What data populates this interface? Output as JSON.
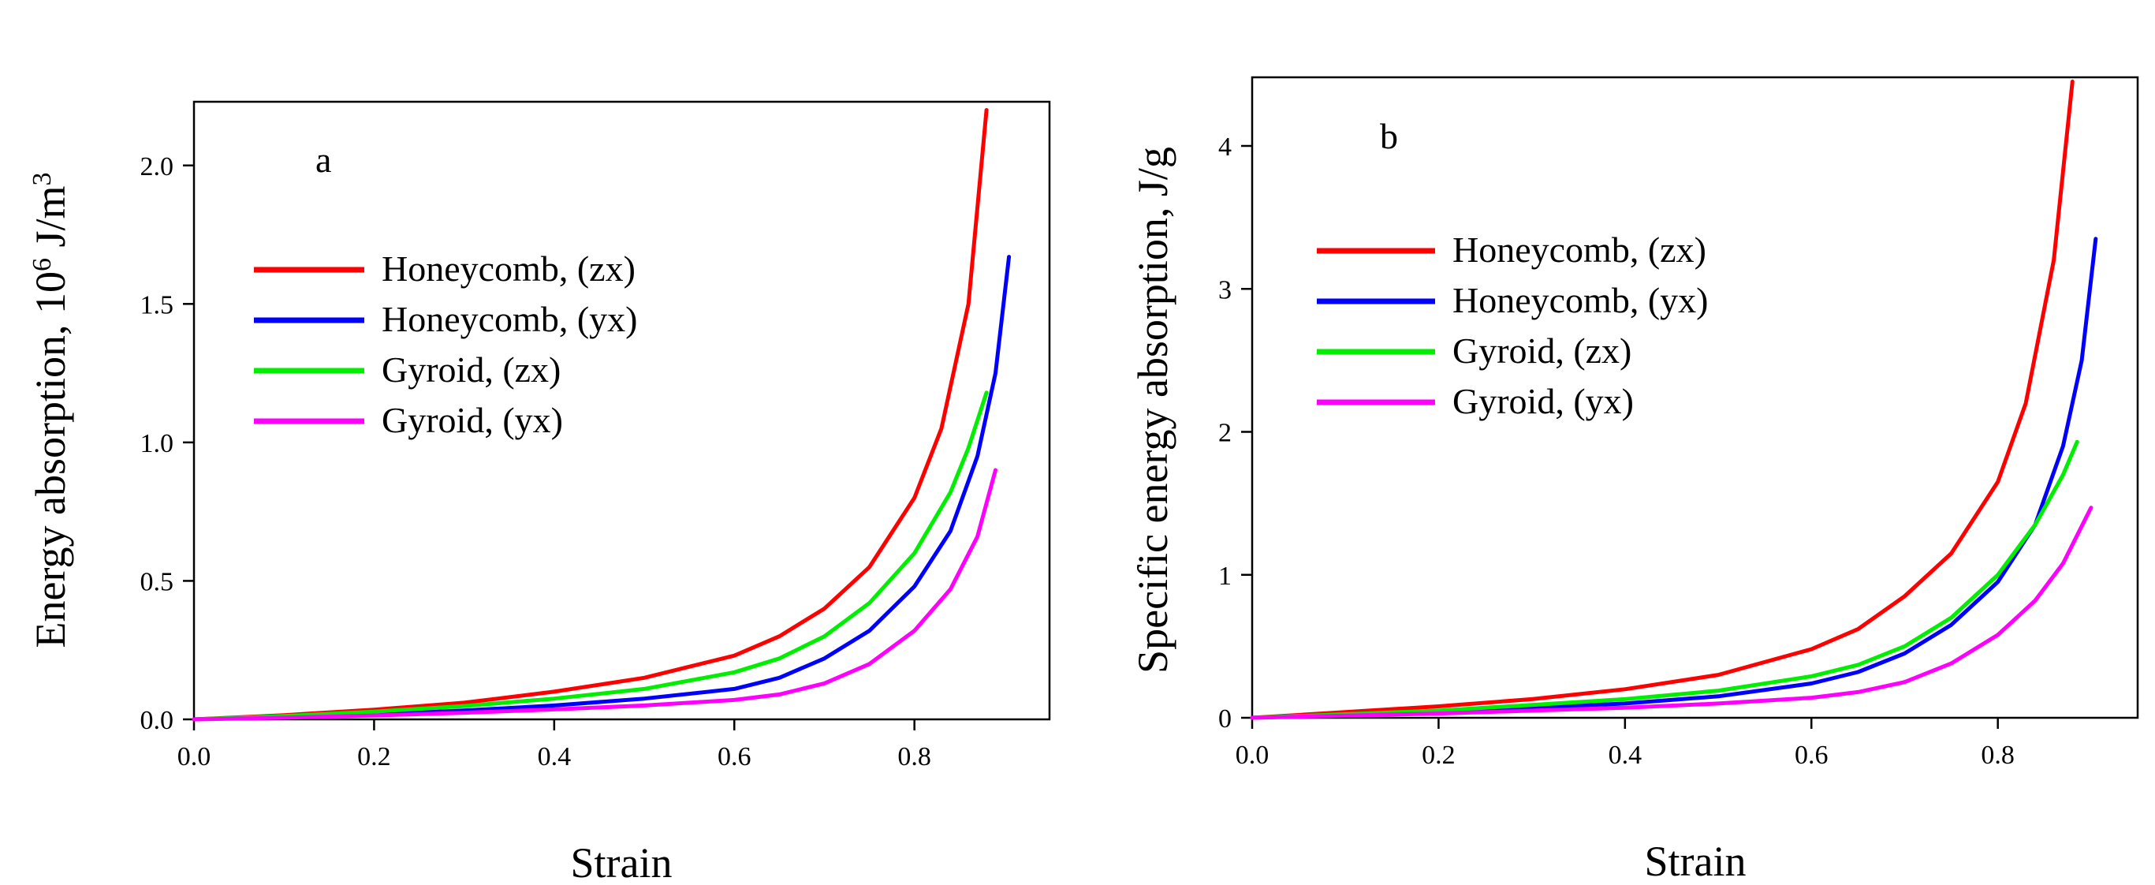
{
  "chart_data": [
    {
      "type": "line",
      "panel_label": "a",
      "xlabel": "Strain",
      "ylabel_main": "Energy absorption,  10",
      "ylabel_exp": "6",
      "ylabel_unit": " J/m",
      "ylabel_unit_exp": "3",
      "xlim": [
        0,
        0.95
      ],
      "ylim": [
        0,
        2.23
      ],
      "xticks": [
        0.0,
        0.2,
        0.4,
        0.6,
        0.8
      ],
      "xtick_labels": [
        "0.0",
        "0.2",
        "0.4",
        "0.6",
        "0.8"
      ],
      "yticks": [
        0.0,
        0.5,
        1.0,
        1.5,
        2.0
      ],
      "ytick_labels": [
        "0.0",
        "0.5",
        "1.0",
        "1.5",
        "2.0"
      ],
      "legend": [
        "Honeycomb, (zx)",
        "Honeycomb, (yx)",
        "Gyroid, (zx)",
        "Gyroid, (yx)"
      ],
      "legend_position": "upper-left",
      "series": [
        {
          "name": "Honeycomb, (zx)",
          "color": "#ff0000",
          "x": [
            0,
            0.1,
            0.2,
            0.3,
            0.4,
            0.5,
            0.6,
            0.65,
            0.7,
            0.75,
            0.8,
            0.83,
            0.86,
            0.88
          ],
          "y": [
            0,
            0.015,
            0.035,
            0.06,
            0.1,
            0.15,
            0.23,
            0.3,
            0.4,
            0.55,
            0.8,
            1.05,
            1.5,
            2.2
          ]
        },
        {
          "name": "Honeycomb, (yx)",
          "color": "#0000ff",
          "x": [
            0,
            0.1,
            0.2,
            0.3,
            0.4,
            0.5,
            0.6,
            0.65,
            0.7,
            0.75,
            0.8,
            0.84,
            0.87,
            0.89,
            0.905
          ],
          "y": [
            0,
            0.008,
            0.018,
            0.032,
            0.05,
            0.075,
            0.11,
            0.15,
            0.22,
            0.32,
            0.48,
            0.68,
            0.95,
            1.25,
            1.67
          ]
        },
        {
          "name": "Gyroid, (zx)",
          "color": "#00ee00",
          "x": [
            0,
            0.1,
            0.2,
            0.3,
            0.4,
            0.5,
            0.6,
            0.65,
            0.7,
            0.75,
            0.8,
            0.84,
            0.86,
            0.88
          ],
          "y": [
            0,
            0.012,
            0.028,
            0.048,
            0.075,
            0.11,
            0.17,
            0.22,
            0.3,
            0.42,
            0.6,
            0.82,
            0.98,
            1.18
          ]
        },
        {
          "name": "Gyroid, (yx)",
          "color": "#ff00ff",
          "x": [
            0,
            0.1,
            0.2,
            0.3,
            0.4,
            0.5,
            0.6,
            0.65,
            0.7,
            0.75,
            0.8,
            0.84,
            0.87,
            0.89
          ],
          "y": [
            0,
            0.006,
            0.014,
            0.024,
            0.036,
            0.05,
            0.07,
            0.09,
            0.13,
            0.2,
            0.32,
            0.47,
            0.66,
            0.9
          ]
        }
      ]
    },
    {
      "type": "line",
      "panel_label": "b",
      "xlabel": "Strain",
      "ylabel_main": "Specific energy absorption,  J/g",
      "xlim": [
        0,
        0.95
      ],
      "ylim": [
        0,
        4.48
      ],
      "xticks": [
        0.0,
        0.2,
        0.4,
        0.6,
        0.8
      ],
      "xtick_labels": [
        "0.0",
        "0.2",
        "0.4",
        "0.6",
        "0.8"
      ],
      "yticks": [
        0,
        1,
        2,
        3,
        4
      ],
      "ytick_labels": [
        "0",
        "1",
        "2",
        "3",
        "4"
      ],
      "legend": [
        "Honeycomb, (zx)",
        "Honeycomb, (yx)",
        "Gyroid, (zx)",
        "Gyroid, (yx)"
      ],
      "legend_position": "upper-left",
      "series": [
        {
          "name": "Honeycomb, (zx)",
          "color": "#ff0000",
          "x": [
            0,
            0.1,
            0.2,
            0.3,
            0.4,
            0.5,
            0.6,
            0.65,
            0.7,
            0.75,
            0.8,
            0.83,
            0.86,
            0.88
          ],
          "y": [
            0,
            0.04,
            0.08,
            0.13,
            0.2,
            0.3,
            0.48,
            0.62,
            0.85,
            1.15,
            1.65,
            2.2,
            3.2,
            4.45
          ]
        },
        {
          "name": "Honeycomb, (yx)",
          "color": "#0000ff",
          "x": [
            0,
            0.1,
            0.2,
            0.3,
            0.4,
            0.5,
            0.6,
            0.65,
            0.7,
            0.75,
            0.8,
            0.84,
            0.87,
            0.89,
            0.905
          ],
          "y": [
            0,
            0.02,
            0.04,
            0.07,
            0.1,
            0.15,
            0.24,
            0.32,
            0.45,
            0.65,
            0.95,
            1.35,
            1.9,
            2.5,
            3.35
          ]
        },
        {
          "name": "Gyroid, (zx)",
          "color": "#00ee00",
          "x": [
            0,
            0.1,
            0.2,
            0.3,
            0.4,
            0.5,
            0.6,
            0.65,
            0.7,
            0.75,
            0.8,
            0.84,
            0.87,
            0.885
          ],
          "y": [
            0,
            0.025,
            0.05,
            0.09,
            0.13,
            0.19,
            0.29,
            0.37,
            0.5,
            0.7,
            1.0,
            1.35,
            1.7,
            1.93
          ]
        },
        {
          "name": "Gyroid, (yx)",
          "color": "#ff00ff",
          "x": [
            0,
            0.1,
            0.2,
            0.3,
            0.4,
            0.5,
            0.6,
            0.65,
            0.7,
            0.75,
            0.8,
            0.84,
            0.87,
            0.9
          ],
          "y": [
            0,
            0.015,
            0.03,
            0.05,
            0.07,
            0.1,
            0.14,
            0.18,
            0.25,
            0.38,
            0.58,
            0.82,
            1.08,
            1.47
          ]
        }
      ]
    }
  ]
}
